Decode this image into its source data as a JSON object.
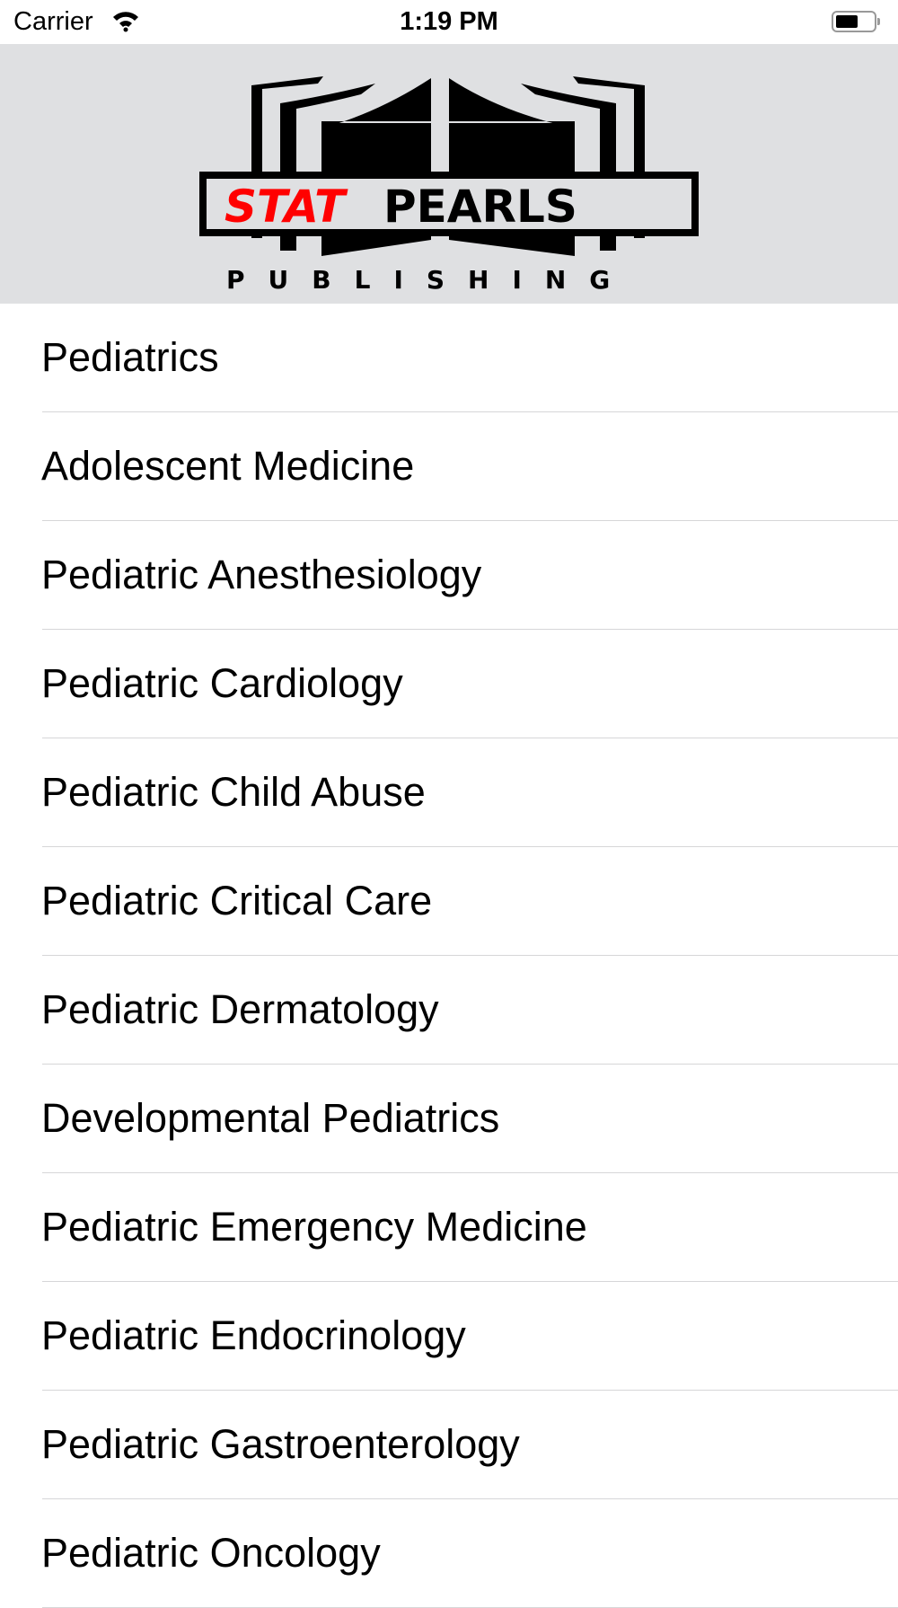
{
  "status_bar": {
    "carrier": "Carrier",
    "time": "1:19 PM",
    "wifi_icon": "wifi-icon",
    "battery_icon": "battery-icon",
    "battery_level": 0.5
  },
  "header": {
    "logo": {
      "text_red": "STAT",
      "text_black": "PEARLS",
      "subtitle": "PUBLISHING",
      "accent_color": "#ff0000"
    },
    "background": "#dfe0e2"
  },
  "list": {
    "items": [
      {
        "label": "Pediatrics"
      },
      {
        "label": "Adolescent Medicine"
      },
      {
        "label": "Pediatric Anesthesiology"
      },
      {
        "label": "Pediatric Cardiology"
      },
      {
        "label": "Pediatric Child Abuse"
      },
      {
        "label": "Pediatric Critical Care"
      },
      {
        "label": "Pediatric Dermatology"
      },
      {
        "label": "Developmental Pediatrics"
      },
      {
        "label": "Pediatric Emergency Medicine"
      },
      {
        "label": "Pediatric Endocrinology"
      },
      {
        "label": "Pediatric Gastroenterology"
      },
      {
        "label": "Pediatric Oncology"
      }
    ]
  }
}
